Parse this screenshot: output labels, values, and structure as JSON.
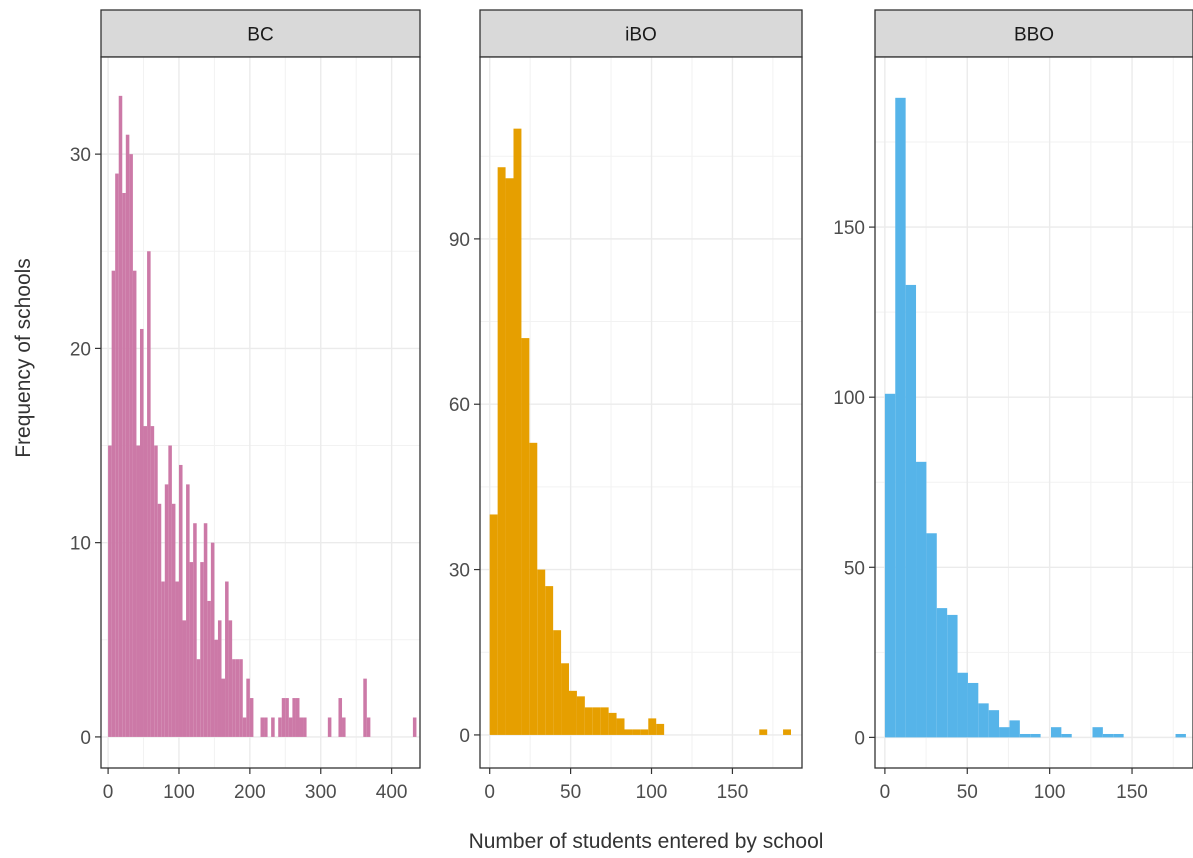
{
  "chart_data": {
    "type": "bar",
    "xlabel": "Number of students entered by school",
    "ylabel": "Frequency of schools",
    "grid": true,
    "legend": "none",
    "panels": [
      {
        "name": "BC",
        "color": "#CC79A7",
        "xlim": [
          -10,
          440
        ],
        "ylim": [
          -1.6,
          35
        ],
        "xticks": [
          0,
          100,
          200,
          300,
          400
        ],
        "xtick_labels": [
          "0",
          "100",
          "200",
          "300",
          "400"
        ],
        "yticks": [
          0,
          10,
          20,
          30
        ],
        "ytick_labels": [
          "0",
          "10",
          "20",
          "30"
        ],
        "binwidth": 5,
        "bins_x": [
          0,
          5,
          10,
          15,
          20,
          25,
          30,
          35,
          40,
          45,
          50,
          55,
          60,
          65,
          70,
          75,
          80,
          85,
          90,
          95,
          100,
          105,
          110,
          115,
          120,
          125,
          130,
          135,
          140,
          145,
          150,
          155,
          160,
          165,
          170,
          175,
          180,
          185,
          190,
          195,
          200,
          205,
          210,
          215,
          220,
          225,
          230,
          235,
          240,
          245,
          250,
          255,
          260,
          265,
          270,
          275,
          280,
          285,
          290,
          295,
          300,
          305,
          310,
          315,
          320,
          325,
          330,
          335,
          340,
          345,
          350,
          355,
          360,
          365,
          370,
          375,
          380,
          385,
          390,
          395,
          400,
          405,
          410,
          415,
          420,
          425,
          430
        ],
        "counts": [
          15,
          24,
          29,
          33,
          28,
          31,
          30,
          24,
          15,
          21,
          16,
          25,
          16,
          15,
          12,
          8,
          13,
          15,
          12,
          8,
          14,
          6,
          13,
          9,
          11,
          4,
          9,
          11,
          7,
          10,
          5,
          6,
          3,
          8,
          6,
          4,
          4,
          4,
          1,
          3,
          2,
          0,
          0,
          1,
          1,
          0,
          1,
          0,
          1,
          2,
          2,
          1,
          2,
          2,
          1,
          1,
          0,
          0,
          0,
          0,
          0,
          0,
          1,
          0,
          0,
          2,
          1,
          0,
          0,
          0,
          0,
          0,
          3,
          1,
          0,
          0,
          0,
          0,
          0,
          0,
          0,
          0,
          0,
          0,
          0,
          0,
          1
        ]
      },
      {
        "name": "iBO",
        "color": "#E69F00",
        "xlim": [
          -6,
          193
        ],
        "ylim": [
          -6,
          123
        ],
        "xticks": [
          0,
          50,
          100,
          150
        ],
        "xtick_labels": [
          "0",
          "50",
          "100",
          "150"
        ],
        "yticks": [
          0,
          30,
          60,
          90
        ],
        "ytick_labels": [
          "0",
          "30",
          "60",
          "90"
        ],
        "binwidth": 4.9,
        "bins_x": [
          0,
          4.9,
          9.8,
          14.7,
          19.6,
          24.5,
          29.4,
          34.3,
          39.2,
          44.1,
          49,
          53.9,
          58.8,
          63.7,
          68.6,
          73.5,
          78.4,
          83.3,
          88.2,
          93.1,
          98,
          102.9,
          107.8,
          112.7,
          117.6,
          122.5,
          127.4,
          132.3,
          137.2,
          142.1,
          147,
          151.9,
          156.8,
          161.7,
          166.6,
          171.5,
          176.4,
          181.3
        ],
        "counts": [
          40,
          103,
          101,
          110,
          72,
          53,
          30,
          27,
          19,
          13,
          8,
          7,
          5,
          5,
          5,
          4,
          3,
          1,
          1,
          1,
          3,
          2,
          0,
          0,
          0,
          0,
          0,
          0,
          0,
          0,
          0,
          0,
          0,
          0,
          1,
          0,
          0,
          1
        ]
      },
      {
        "name": "BBO",
        "color": "#56B4E9",
        "xlim": [
          -6,
          187
        ],
        "ylim": [
          -9,
          200
        ],
        "xticks": [
          0,
          50,
          100,
          150
        ],
        "xtick_labels": [
          "0",
          "50",
          "100",
          "150"
        ],
        "yticks": [
          0,
          50,
          100,
          150
        ],
        "ytick_labels": [
          "0",
          "50",
          "100",
          "150"
        ],
        "binwidth": 6.3,
        "bins_x": [
          0,
          6.3,
          12.6,
          18.9,
          25.2,
          31.5,
          37.8,
          44.1,
          50.4,
          56.7,
          63,
          69.3,
          75.6,
          81.9,
          88.2,
          94.5,
          100.8,
          107.1,
          113.4,
          119.7,
          126,
          132.3,
          138.6,
          144.9,
          151.2,
          157.5,
          163.8,
          170.1,
          176.4
        ],
        "counts": [
          101,
          188,
          133,
          81,
          60,
          38,
          36,
          19,
          16,
          10,
          8,
          3,
          5,
          1,
          1,
          0,
          3,
          1,
          0,
          0,
          3,
          1,
          1,
          0,
          0,
          0,
          0,
          0,
          1
        ]
      }
    ]
  }
}
